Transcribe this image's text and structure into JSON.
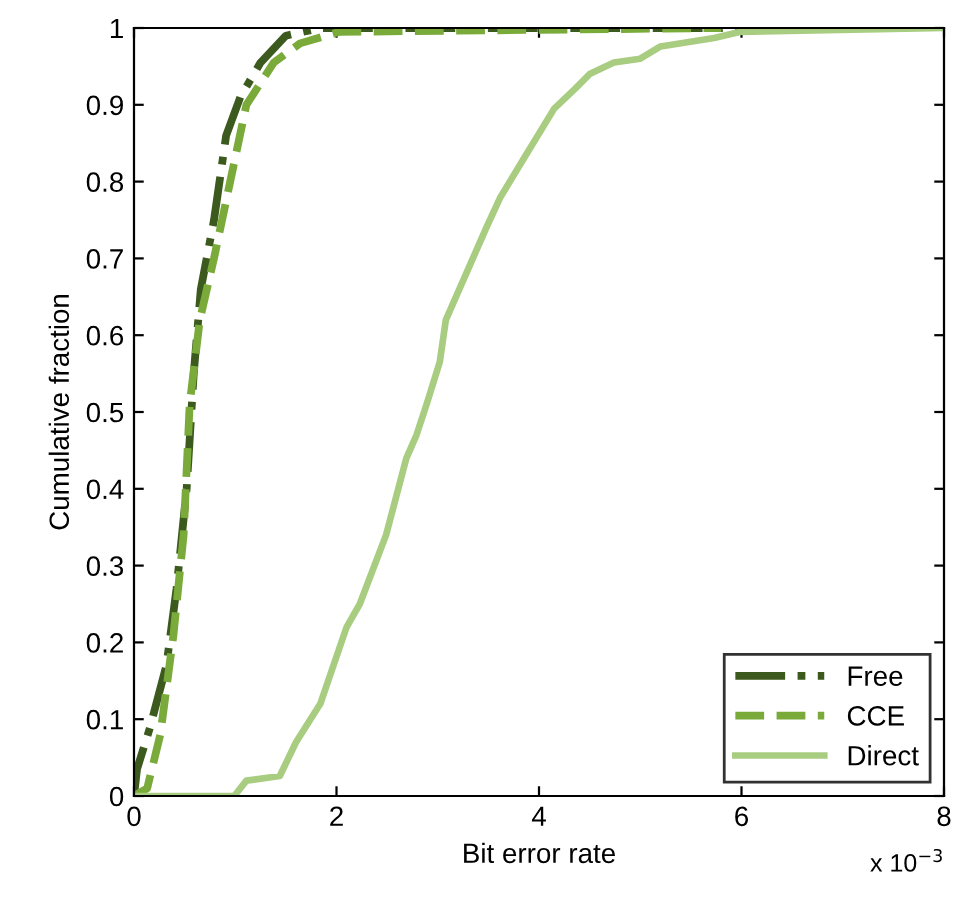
{
  "chart_data": {
    "type": "line",
    "xlabel": "Bit error rate",
    "ylabel": "Cumulative fraction",
    "annotations": [
      "x 10$^{−3}$"
    ],
    "xlim": [
      0,
      8
    ],
    "ylim": [
      0,
      1
    ],
    "xticks": [
      0,
      2,
      4,
      6,
      8
    ],
    "yticks": [
      0,
      0.1,
      0.2,
      0.3,
      0.4,
      0.5,
      0.6,
      0.7,
      0.8,
      0.9,
      1
    ],
    "grid": false,
    "legend": "bottom right",
    "series": [
      {
        "name": "Free",
        "color": "#3d5a1e",
        "line_style": "dashdot",
        "x": [
          0,
          0.03,
          0.16,
          0.32,
          0.42,
          0.52,
          0.59,
          0.66,
          0.79,
          0.91,
          1.05,
          1.25,
          1.5,
          1.84,
          6
        ],
        "values": [
          0,
          0.035,
          0.09,
          0.17,
          0.27,
          0.4,
          0.55,
          0.66,
          0.75,
          0.86,
          0.91,
          0.955,
          0.99,
          1,
          1
        ]
      },
      {
        "name": "CCE",
        "color": "#7aab3a",
        "line_style": "dashed",
        "x": [
          0,
          0.13,
          0.26,
          0.39,
          0.49,
          0.55,
          0.65,
          0.79,
          0.95,
          1.11,
          1.38,
          1.64,
          2.03,
          5.8
        ],
        "values": [
          0,
          0.01,
          0.08,
          0.21,
          0.34,
          0.51,
          0.62,
          0.7,
          0.8,
          0.9,
          0.955,
          0.98,
          0.995,
          1
        ]
      },
      {
        "name": "Direct",
        "color": "#a8cc80",
        "line_style": "solid",
        "x": [
          0,
          0.99,
          1.11,
          1.44,
          1.6,
          1.84,
          2.1,
          2.23,
          2.49,
          2.69,
          2.79,
          2.89,
          3.02,
          3.08,
          3.48,
          3.62,
          3.85,
          4.15,
          4.35,
          4.5,
          4.74,
          5.0,
          5.2,
          5.73,
          5.99,
          8
        ],
        "values": [
          0,
          0,
          0.02,
          0.026,
          0.07,
          0.12,
          0.22,
          0.25,
          0.34,
          0.44,
          0.47,
          0.51,
          0.565,
          0.62,
          0.74,
          0.78,
          0.83,
          0.895,
          0.92,
          0.94,
          0.955,
          0.96,
          0.976,
          0.987,
          0.995,
          1
        ]
      }
    ]
  }
}
